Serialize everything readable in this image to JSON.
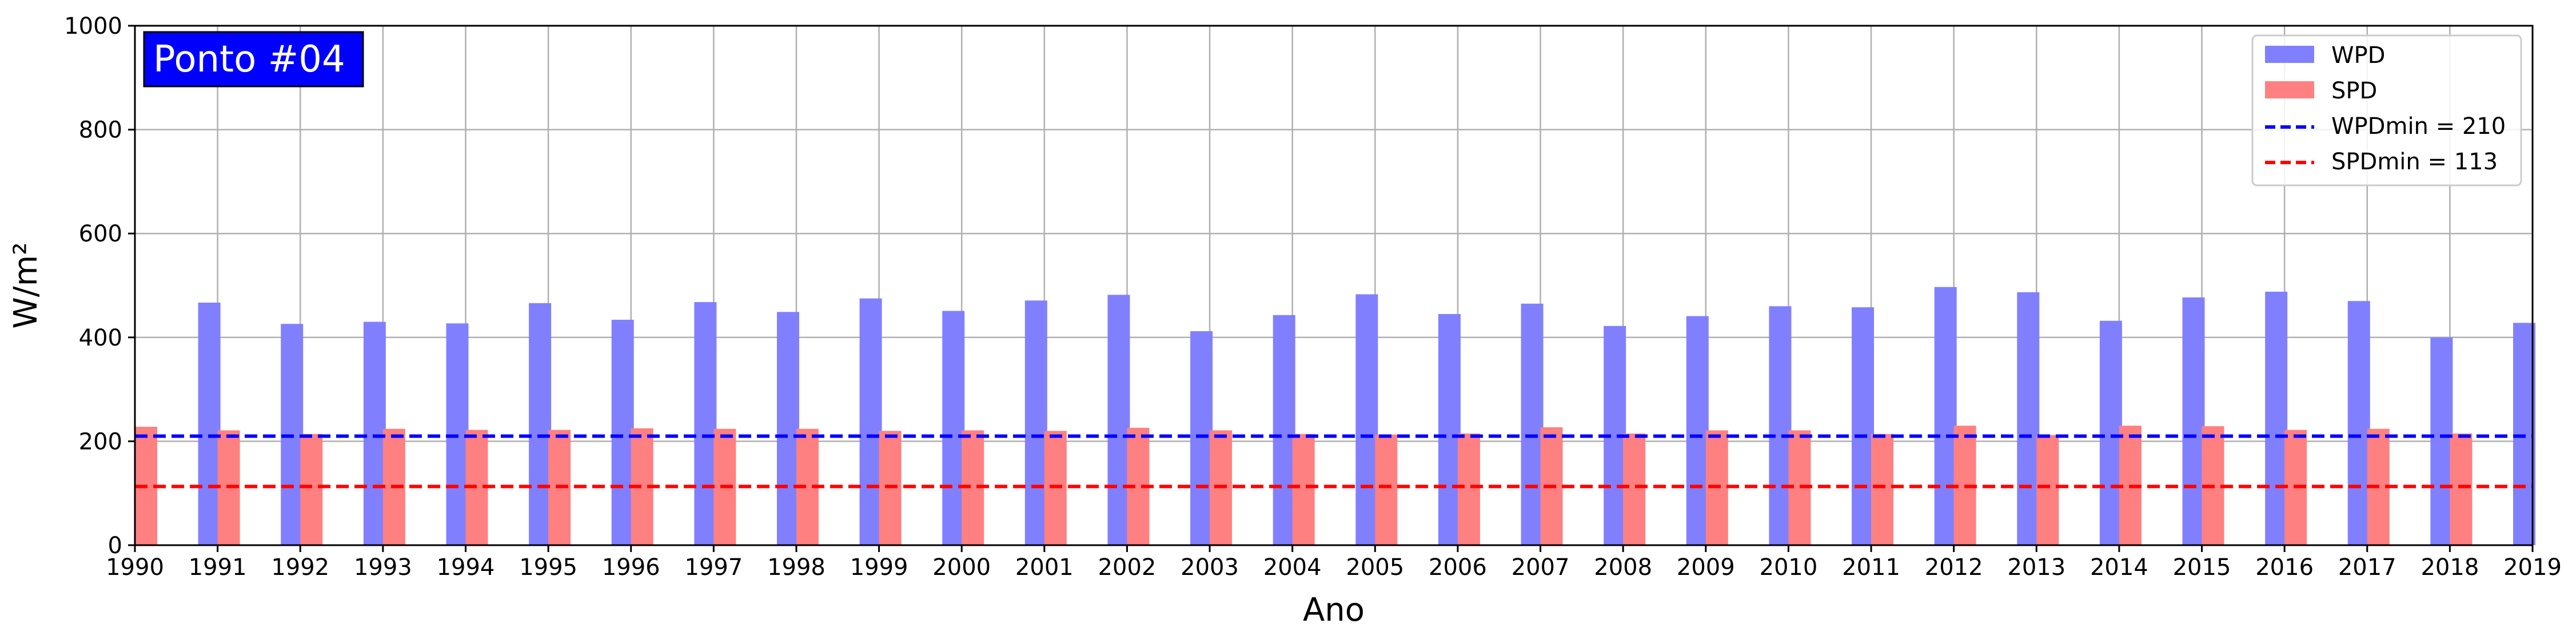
{
  "chart_data": {
    "type": "bar",
    "badge": "Ponto #04",
    "xlabel": "Ano",
    "ylabel": "W/m²",
    "ylim": [
      0,
      1000
    ],
    "xlim": [
      1990,
      2019
    ],
    "yticks": [
      0,
      200,
      400,
      600,
      800,
      1000
    ],
    "grid": true,
    "legend_position": "top-right",
    "categories": [
      1990,
      1991,
      1992,
      1993,
      1994,
      1995,
      1996,
      1997,
      1998,
      1999,
      2000,
      2001,
      2002,
      2003,
      2004,
      2005,
      2006,
      2007,
      2008,
      2009,
      2010,
      2011,
      2012,
      2013,
      2014,
      2015,
      2016,
      2017,
      2018,
      2019
    ],
    "series": [
      {
        "name": "WPD",
        "color": "#8080ff",
        "x": [
          1991,
          1992,
          1993,
          1994,
          1995,
          1996,
          1997,
          1998,
          1999,
          2000,
          2001,
          2002,
          2003,
          2004,
          2005,
          2006,
          2007,
          2008,
          2009,
          2010,
          2011,
          2012,
          2013,
          2014,
          2015,
          2016,
          2017,
          2018,
          2019
        ],
        "values": [
          467,
          426,
          430,
          427,
          466,
          434,
          468,
          449,
          475,
          451,
          471,
          482,
          412,
          443,
          483,
          445,
          465,
          422,
          441,
          460,
          458,
          497,
          487,
          432,
          477,
          488,
          470,
          400,
          428
        ]
      },
      {
        "name": "SPD",
        "color": "#ff8080",
        "x": [
          1990,
          1991,
          1992,
          1993,
          1994,
          1995,
          1996,
          1997,
          1998,
          1999,
          2000,
          2001,
          2002,
          2003,
          2004,
          2005,
          2006,
          2007,
          2008,
          2009,
          2010,
          2011,
          2012,
          2013,
          2014,
          2015,
          2016,
          2017,
          2018
        ],
        "values": [
          228,
          221,
          214,
          224,
          222,
          222,
          225,
          224,
          224,
          220,
          221,
          220,
          226,
          221,
          214,
          213,
          215,
          227,
          215,
          221,
          221,
          214,
          230,
          212,
          230,
          229,
          222,
          224,
          215
        ]
      }
    ],
    "reference_lines": [
      {
        "name": "WPDmin = 210",
        "value": 210,
        "color": "#0000ff"
      },
      {
        "name": "SPDmin = 113",
        "value": 113,
        "color": "#ff0000"
      }
    ]
  }
}
